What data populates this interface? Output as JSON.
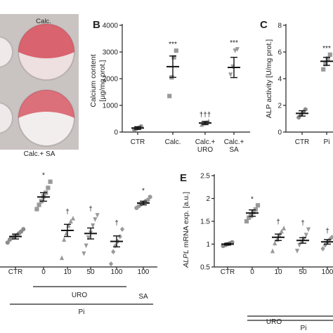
{
  "colors": {
    "ctr": "#8c8c8c",
    "treated": "#9a9a9a",
    "mean": "#111111",
    "dish_stain": "#d23a48",
    "dish_bg": "#f2eeee"
  },
  "panels": {
    "A": {
      "label_calc": "Calc.",
      "label_calc_sa": "Calc.+ SA"
    },
    "B": {
      "letter": "B",
      "ylabel_line1": "Calcium content",
      "ylabel_line2": "[µg/mg prot.]"
    },
    "C": {
      "letter": "C",
      "ylabel": "ALP activity [U/mg prot.]"
    },
    "D": {
      "pi_label": "Pi",
      "uro_label": "URO",
      "sa_label": "SA"
    },
    "E": {
      "letter": "E",
      "ylabel_italic": "ALPL",
      "ylabel_rest": " mRNA exp. [a.u.]",
      "pi_label": "Pi",
      "uro_label": "URO"
    }
  },
  "chart_data": [
    {
      "id": "B",
      "type": "scatter",
      "categories": [
        "CTR",
        "Calc.",
        "Calc.+\nURO",
        "Calc.+\nSA"
      ],
      "ylim": [
        0,
        4000
      ],
      "yticks": [
        0,
        1000,
        2000,
        3000,
        4000
      ],
      "means": [
        150,
        2450,
        340,
        2420
      ],
      "sem": [
        50,
        400,
        60,
        380
      ],
      "points": [
        [
          80,
          130,
          160,
          210
        ],
        [
          1350,
          2050,
          2800,
          3050
        ],
        [
          280,
          330,
          360,
          410
        ],
        [
          2150,
          2450,
          3050,
          3100
        ]
      ],
      "annotations": [
        "",
        "***",
        "†††",
        "***"
      ]
    },
    {
      "id": "C",
      "type": "scatter",
      "categories": [
        "CTR",
        "Pi"
      ],
      "ylim": [
        0,
        8
      ],
      "yticks": [
        0,
        2,
        4,
        6,
        8
      ],
      "means": [
        1.4,
        5.3
      ],
      "sem": [
        0.2,
        0.3
      ],
      "points": [
        [
          1.1,
          1.3,
          1.5,
          1.7
        ],
        [
          4.7,
          5.1,
          5.5,
          5.8
        ]
      ],
      "annotations": [
        "",
        "***"
      ]
    },
    {
      "id": "D",
      "type": "scatter",
      "categories": [
        "CTR",
        "0",
        "10",
        "50",
        "100",
        "100"
      ],
      "ylim": [
        0.5,
        2.0
      ],
      "means": [
        1.0,
        1.65,
        1.1,
        1.05,
        0.92,
        1.55
      ],
      "sem": [
        0.04,
        0.07,
        0.1,
        0.09,
        0.09,
        0.03
      ],
      "points": [
        [
          0.9,
          0.95,
          0.98,
          1.0,
          1.02,
          1.05,
          1.08,
          1.12
        ],
        [
          1.45,
          1.52,
          1.58,
          1.66,
          1.72,
          1.8,
          1.9
        ],
        [
          0.65,
          0.95,
          1.05,
          1.18,
          1.25,
          1.3
        ],
        [
          0.72,
          0.85,
          0.98,
          1.06,
          1.18,
          1.28,
          1.35
        ],
        [
          0.55,
          0.75,
          0.85,
          0.92,
          1.0,
          1.12
        ],
        [
          1.47,
          1.5,
          1.53,
          1.55,
          1.58,
          1.6,
          1.65
        ]
      ],
      "annotations": [
        "",
        "*",
        "†",
        "†",
        "†",
        "*"
      ]
    },
    {
      "id": "E",
      "type": "scatter",
      "categories": [
        "CTR",
        "0",
        "10",
        "50",
        "100"
      ],
      "ylim": [
        0.5,
        2.5
      ],
      "yticks": [
        0.5,
        1.0,
        1.5,
        2.0,
        2.5
      ],
      "means": [
        1.0,
        1.68,
        1.15,
        1.08,
        1.05
      ],
      "sem": [
        0.02,
        0.07,
        0.07,
        0.06,
        0.05
      ],
      "points": [
        [
          0.96,
          0.98,
          1.0,
          1.02,
          1.04
        ],
        [
          1.5,
          1.58,
          1.62,
          1.7,
          1.76,
          1.85
        ],
        [
          0.85,
          1.02,
          1.1,
          1.2,
          1.28,
          1.35
        ],
        [
          0.85,
          0.98,
          1.05,
          1.12,
          1.2,
          1.32
        ],
        [
          0.9,
          0.98,
          1.05,
          1.1,
          1.15
        ]
      ],
      "annotations": [
        "",
        "*",
        "†",
        "†",
        "†"
      ]
    }
  ]
}
